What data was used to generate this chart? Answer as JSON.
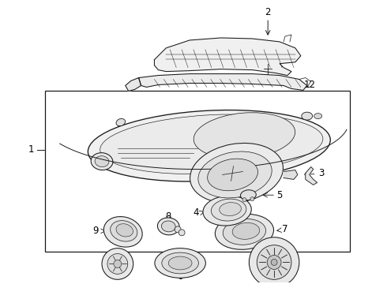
{
  "background_color": "#ffffff",
  "line_color": "#1a1a1a",
  "fig_width": 4.9,
  "fig_height": 3.6,
  "dpi": 100,
  "label_fontsize": 8.5,
  "lw": 0.75
}
